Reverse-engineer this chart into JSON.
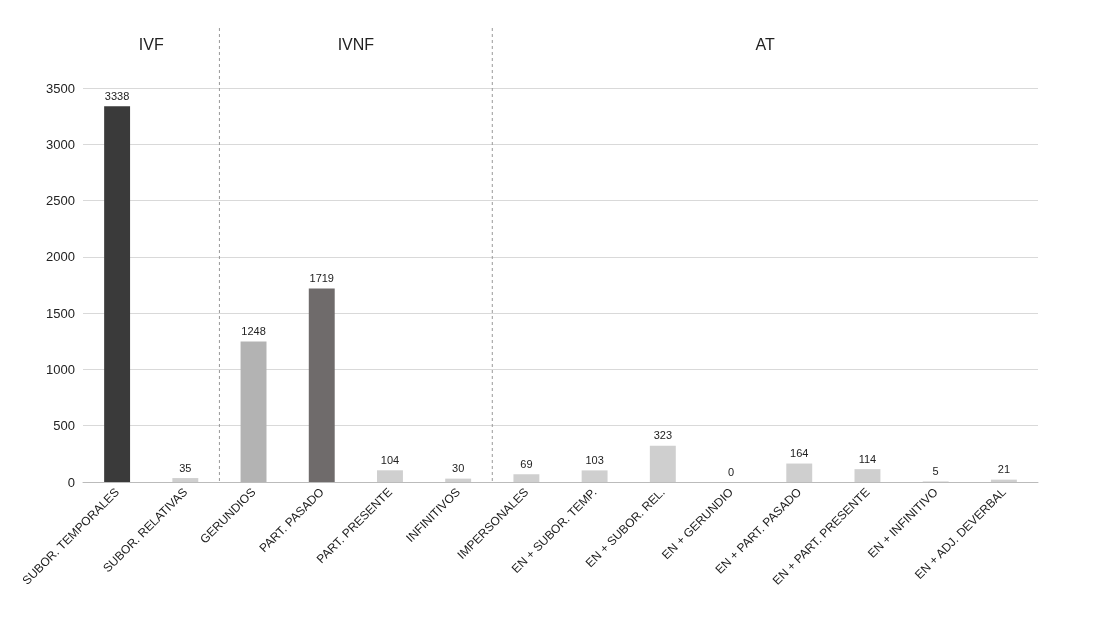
{
  "chart_data": {
    "type": "bar",
    "categories": [
      "SUBOR. TEMPORALES",
      "SUBOR. RELATIVAS",
      "GERUNDIOS",
      "PART. PASADO",
      "PART. PRESENTE",
      "INFINITIVOS",
      "IMPERSONALES",
      "EN + SUBOR. TEMP.",
      "EN + SUBOR. REL.",
      "EN + GERUNDIO",
      "EN + PART. PASADO",
      "EN + PART. PRESENTE",
      "EN + INFINITIVO",
      "EN + ADJ. DEVERBAL"
    ],
    "values": [
      3338,
      35,
      1248,
      1719,
      104,
      30,
      69,
      103,
      323,
      0,
      164,
      114,
      5,
      21
    ],
    "colors": [
      "#3a3a3a",
      "#cfcfcf",
      "#b3b3b3",
      "#6f6b6b",
      "#cfcfcf",
      "#cfcfcf",
      "#cfcfcf",
      "#cfcfcf",
      "#cfcfcf",
      "#cfcfcf",
      "#cfcfcf",
      "#cfcfcf",
      "#cfcfcf",
      "#cfcfcf"
    ],
    "ylim": [
      0,
      3500
    ],
    "yticks": [
      0,
      500,
      1000,
      1500,
      2000,
      2500,
      3000,
      3500
    ],
    "grid": "y",
    "data_labels": true,
    "annotations": [
      "IVF",
      "IVNF",
      "AT"
    ]
  }
}
